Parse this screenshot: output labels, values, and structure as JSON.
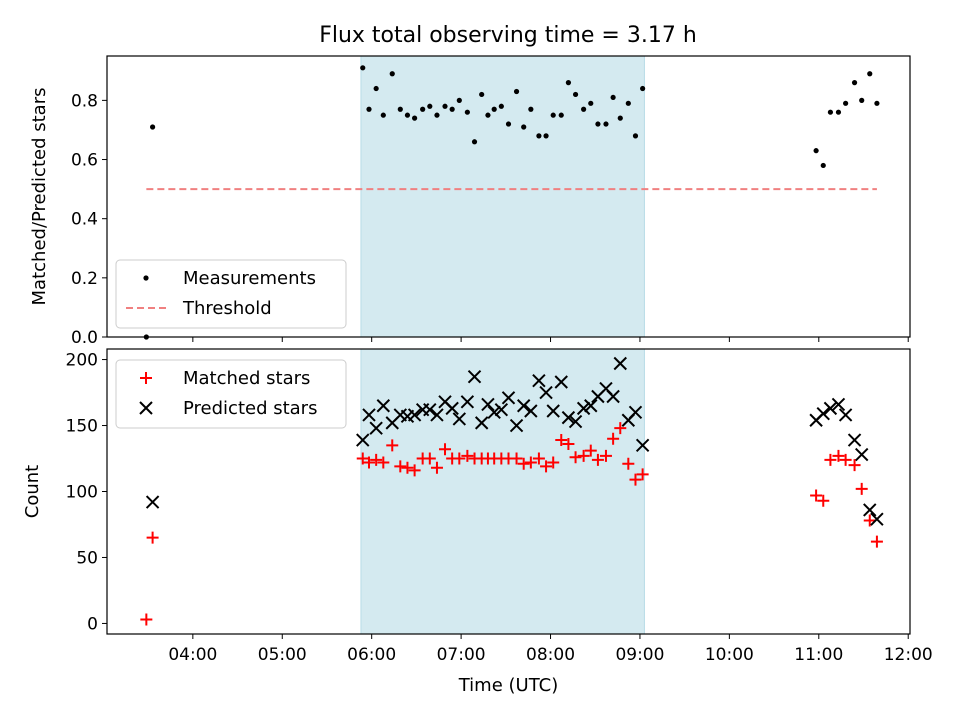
{
  "figure": {
    "title": "Flux total observing time = 3.17 h"
  },
  "chart_data": [
    {
      "type": "scatter",
      "ylabel": "Matched/Predicted stars",
      "xlim_hours": [
        3.04,
        12.02
      ],
      "ylim": [
        0,
        0.95
      ],
      "yticks": [
        0.0,
        0.2,
        0.4,
        0.6,
        0.8
      ],
      "ytick_labels": [
        "0.0",
        "0.2",
        "0.4",
        "0.6",
        "0.8"
      ],
      "shaded_span_hours": [
        5.88,
        9.05
      ],
      "shade_color": "#d4eaf0",
      "legend_position": "lower left",
      "series": [
        {
          "name": "Measurements",
          "marker": "dot",
          "color": "#000000",
          "x_hours": [
            3.48,
            3.55,
            5.9,
            5.97,
            6.05,
            6.13,
            6.23,
            6.32,
            6.4,
            6.48,
            6.57,
            6.65,
            6.73,
            6.82,
            6.9,
            6.98,
            7.07,
            7.15,
            7.23,
            7.3,
            7.37,
            7.45,
            7.53,
            7.62,
            7.7,
            7.78,
            7.87,
            7.95,
            8.03,
            8.12,
            8.2,
            8.28,
            8.37,
            8.45,
            8.53,
            8.62,
            8.7,
            8.78,
            8.87,
            8.95,
            9.03,
            10.97,
            11.05,
            11.13,
            11.22,
            11.3,
            11.4,
            11.48,
            11.57,
            11.65
          ],
          "y": [
            0.0,
            0.71,
            0.91,
            0.77,
            0.84,
            0.75,
            0.89,
            0.77,
            0.75,
            0.74,
            0.77,
            0.78,
            0.75,
            0.78,
            0.77,
            0.8,
            0.76,
            0.66,
            0.82,
            0.75,
            0.77,
            0.78,
            0.72,
            0.83,
            0.71,
            0.77,
            0.68,
            0.68,
            0.75,
            0.75,
            0.86,
            0.82,
            0.77,
            0.79,
            0.72,
            0.72,
            0.81,
            0.74,
            0.79,
            0.68,
            0.84,
            0.63,
            0.58,
            0.76,
            0.76,
            0.79,
            0.86,
            0.8,
            0.89,
            0.79
          ]
        },
        {
          "name": "Threshold",
          "marker": "dashed-line",
          "color": "#f08080",
          "x_hours": [
            3.48,
            11.65
          ],
          "y": [
            0.5,
            0.5
          ]
        }
      ]
    },
    {
      "type": "scatter",
      "xlabel": "Time (UTC)",
      "ylabel": "Count",
      "xlim_hours": [
        3.04,
        12.02
      ],
      "ylim": [
        -8,
        208
      ],
      "yticks": [
        0,
        50,
        100,
        150,
        200
      ],
      "ytick_labels": [
        "0",
        "50",
        "100",
        "150",
        "200"
      ],
      "xticks_hours": [
        4,
        5,
        6,
        7,
        8,
        9,
        10,
        11,
        12
      ],
      "xtick_labels": [
        "04:00",
        "05:00",
        "06:00",
        "07:00",
        "08:00",
        "09:00",
        "10:00",
        "11:00",
        "12:00"
      ],
      "shaded_span_hours": [
        5.88,
        9.05
      ],
      "shade_color": "#d4eaf0",
      "legend_position": "upper left",
      "series": [
        {
          "name": "Matched stars",
          "marker": "plus",
          "color": "#ff0000",
          "x_hours": [
            3.48,
            3.55,
            5.9,
            5.97,
            6.05,
            6.13,
            6.23,
            6.32,
            6.4,
            6.48,
            6.57,
            6.65,
            6.73,
            6.82,
            6.9,
            6.98,
            7.07,
            7.15,
            7.23,
            7.3,
            7.37,
            7.45,
            7.53,
            7.62,
            7.7,
            7.78,
            7.87,
            7.95,
            8.03,
            8.12,
            8.2,
            8.28,
            8.37,
            8.45,
            8.53,
            8.62,
            8.7,
            8.78,
            8.87,
            8.95,
            9.03,
            10.97,
            11.05,
            11.13,
            11.22,
            11.3,
            11.4,
            11.48,
            11.57,
            11.65
          ],
          "y": [
            3,
            65,
            125,
            122,
            124,
            122,
            135,
            119,
            118,
            116,
            125,
            125,
            118,
            132,
            125,
            125,
            127,
            125,
            125,
            125,
            125,
            125,
            125,
            125,
            121,
            122,
            125,
            119,
            122,
            139,
            136,
            126,
            127,
            131,
            124,
            127,
            140,
            148,
            121,
            109,
            113,
            97,
            93,
            124,
            127,
            124,
            120,
            102,
            78,
            62
          ]
        },
        {
          "name": "Predicted stars",
          "marker": "x",
          "color": "#000000",
          "x_hours": [
            3.55,
            5.9,
            5.97,
            6.05,
            6.13,
            6.23,
            6.32,
            6.4,
            6.48,
            6.57,
            6.65,
            6.73,
            6.82,
            6.9,
            6.98,
            7.07,
            7.15,
            7.23,
            7.3,
            7.37,
            7.45,
            7.53,
            7.62,
            7.7,
            7.78,
            7.87,
            7.95,
            8.03,
            8.12,
            8.2,
            8.28,
            8.37,
            8.45,
            8.53,
            8.62,
            8.7,
            8.78,
            8.87,
            8.95,
            9.03,
            10.97,
            11.05,
            11.13,
            11.22,
            11.3,
            11.4,
            11.48,
            11.57,
            11.65
          ],
          "y": [
            92,
            139,
            158,
            148,
            165,
            152,
            158,
            157,
            158,
            162,
            162,
            158,
            168,
            163,
            155,
            168,
            187,
            152,
            166,
            160,
            162,
            171,
            150,
            165,
            161,
            184,
            175,
            161,
            183,
            156,
            153,
            163,
            165,
            172,
            178,
            172,
            197,
            154,
            160,
            135,
            154,
            159,
            163,
            166,
            158,
            139,
            128,
            86,
            79
          ]
        }
      ]
    }
  ]
}
